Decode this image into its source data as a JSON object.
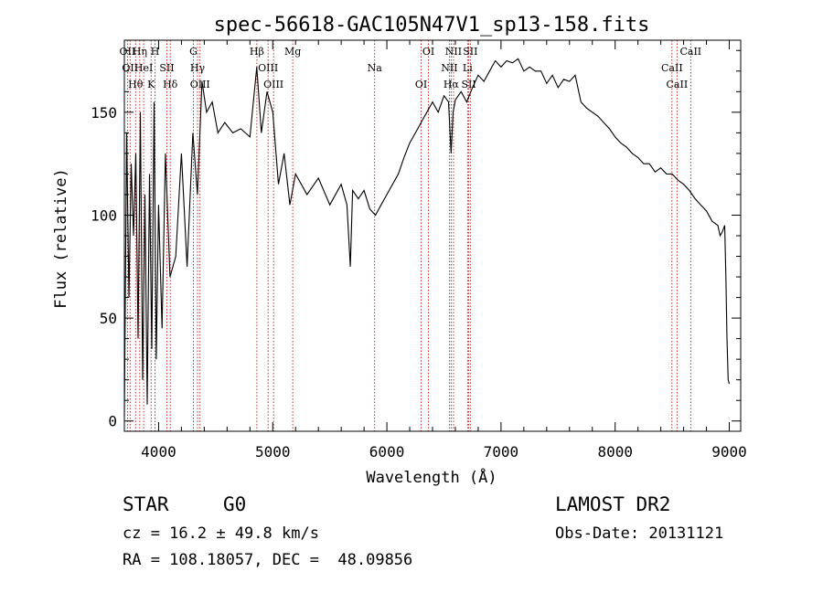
{
  "chart_data": {
    "type": "line",
    "title": "spec-56618-GAC105N47V1_sp13-158.fits",
    "xlabel": "Wavelength (Å)",
    "ylabel": "Flux (relative)",
    "xlim": [
      3700,
      9100
    ],
    "ylim": [
      -5,
      185
    ],
    "xticks": [
      4000,
      5000,
      6000,
      7000,
      8000,
      9000
    ],
    "yticks": [
      0,
      50,
      100,
      150
    ],
    "grid": false,
    "line_color": "#000000",
    "marker_color": "#b00000",
    "series": [
      {
        "x": [
          3700,
          3720,
          3740,
          3760,
          3780,
          3800,
          3820,
          3840,
          3860,
          3880,
          3900,
          3920,
          3940,
          3960,
          3980,
          4000,
          4030,
          4060,
          4100,
          4150,
          4200,
          4250,
          4300,
          4340,
          4380,
          4420,
          4470,
          4520,
          4580,
          4650,
          4720,
          4800,
          4860,
          4900,
          4950,
          5000,
          5050,
          5100,
          5150,
          5200,
          5300,
          5400,
          5500,
          5600,
          5650,
          5680,
          5700,
          5750,
          5800,
          5850,
          5900,
          5950,
          6000,
          6050,
          6100,
          6150,
          6200,
          6250,
          6300,
          6350,
          6400,
          6450,
          6500,
          6540,
          6563,
          6580,
          6600,
          6650,
          6700,
          6750,
          6800,
          6850,
          6900,
          6950,
          7000,
          7050,
          7100,
          7150,
          7200,
          7250,
          7300,
          7350,
          7400,
          7450,
          7500,
          7550,
          7600,
          7650,
          7700,
          7750,
          7800,
          7850,
          7900,
          7950,
          8000,
          8050,
          8100,
          8150,
          8200,
          8250,
          8300,
          8350,
          8400,
          8450,
          8500,
          8550,
          8600,
          8650,
          8700,
          8750,
          8800,
          8850,
          8900,
          8920,
          8940,
          8960,
          8970,
          8980,
          8990,
          9000
        ],
        "y": [
          2,
          140,
          60,
          125,
          90,
          130,
          40,
          150,
          20,
          110,
          8,
          120,
          35,
          155,
          30,
          105,
          45,
          130,
          70,
          80,
          130,
          75,
          140,
          110,
          165,
          150,
          155,
          140,
          145,
          140,
          142,
          138,
          172,
          140,
          160,
          150,
          115,
          130,
          105,
          120,
          110,
          118,
          105,
          115,
          105,
          75,
          112,
          108,
          112,
          103,
          100,
          105,
          110,
          115,
          120,
          128,
          135,
          140,
          145,
          150,
          155,
          150,
          158,
          155,
          130,
          150,
          156,
          160,
          155,
          162,
          168,
          165,
          170,
          175,
          172,
          175,
          174,
          176,
          170,
          172,
          170,
          170,
          164,
          168,
          162,
          166,
          165,
          168,
          155,
          152,
          150,
          148,
          145,
          142,
          138,
          135,
          133,
          130,
          128,
          125,
          125,
          121,
          123,
          120,
          120,
          117,
          115,
          112,
          108,
          105,
          102,
          97,
          95,
          90,
          92,
          95,
          70,
          40,
          20,
          18
        ]
      }
    ],
    "lines": [
      {
        "x": 3727,
        "labels": [
          "OII"
        ]
      },
      {
        "x": 3750,
        "labels": [
          "OII"
        ]
      },
      {
        "x": 3798,
        "labels": [
          "Hθ"
        ]
      },
      {
        "x": 3835,
        "labels": [
          "Hη"
        ]
      },
      {
        "x": 3869,
        "labels": [
          "HeI"
        ]
      },
      {
        "x": 3934,
        "labels": [
          "K"
        ]
      },
      {
        "x": 3969,
        "labels": [
          "H"
        ]
      },
      {
        "x": 4072,
        "labels": [
          "SII"
        ]
      },
      {
        "x": 4102,
        "labels": [
          "Hδ"
        ]
      },
      {
        "x": 4305,
        "labels": [
          "G"
        ]
      },
      {
        "x": 4341,
        "labels": [
          "Hγ"
        ]
      },
      {
        "x": 4363,
        "labels": [
          "OIII"
        ]
      },
      {
        "x": 4861,
        "labels": [
          "Hβ"
        ]
      },
      {
        "x": 4959,
        "labels": [
          "OIII"
        ]
      },
      {
        "x": 5007,
        "labels": [
          "OIII"
        ]
      },
      {
        "x": 5175,
        "labels": [
          "Mg"
        ]
      },
      {
        "x": 5893,
        "labels": [
          "Na"
        ]
      },
      {
        "x": 6300,
        "labels": [
          "OI"
        ]
      },
      {
        "x": 6364,
        "labels": [
          "OI"
        ]
      },
      {
        "x": 6548,
        "labels": [
          "NII"
        ]
      },
      {
        "x": 6563,
        "labels": [
          "Hα"
        ]
      },
      {
        "x": 6584,
        "labels": [
          "NII"
        ]
      },
      {
        "x": 6707,
        "labels": [
          "Li"
        ]
      },
      {
        "x": 6717,
        "labels": [
          "SII"
        ]
      },
      {
        "x": 6731,
        "labels": [
          "SII"
        ]
      },
      {
        "x": 8498,
        "labels": [
          "CaII"
        ]
      },
      {
        "x": 8542,
        "labels": [
          "CaII"
        ]
      },
      {
        "x": 8662,
        "labels": [
          "CaII"
        ]
      }
    ]
  },
  "info": {
    "class_label": "STAR",
    "subclass_label": "G0",
    "survey_label": "LAMOST DR2",
    "cz_text": "cz = 16.2 ± 49.8 km/s",
    "obs_date_text": "Obs-Date: 20131121",
    "radec_text": "RA = 108.18057, DEC =  48.09856"
  }
}
